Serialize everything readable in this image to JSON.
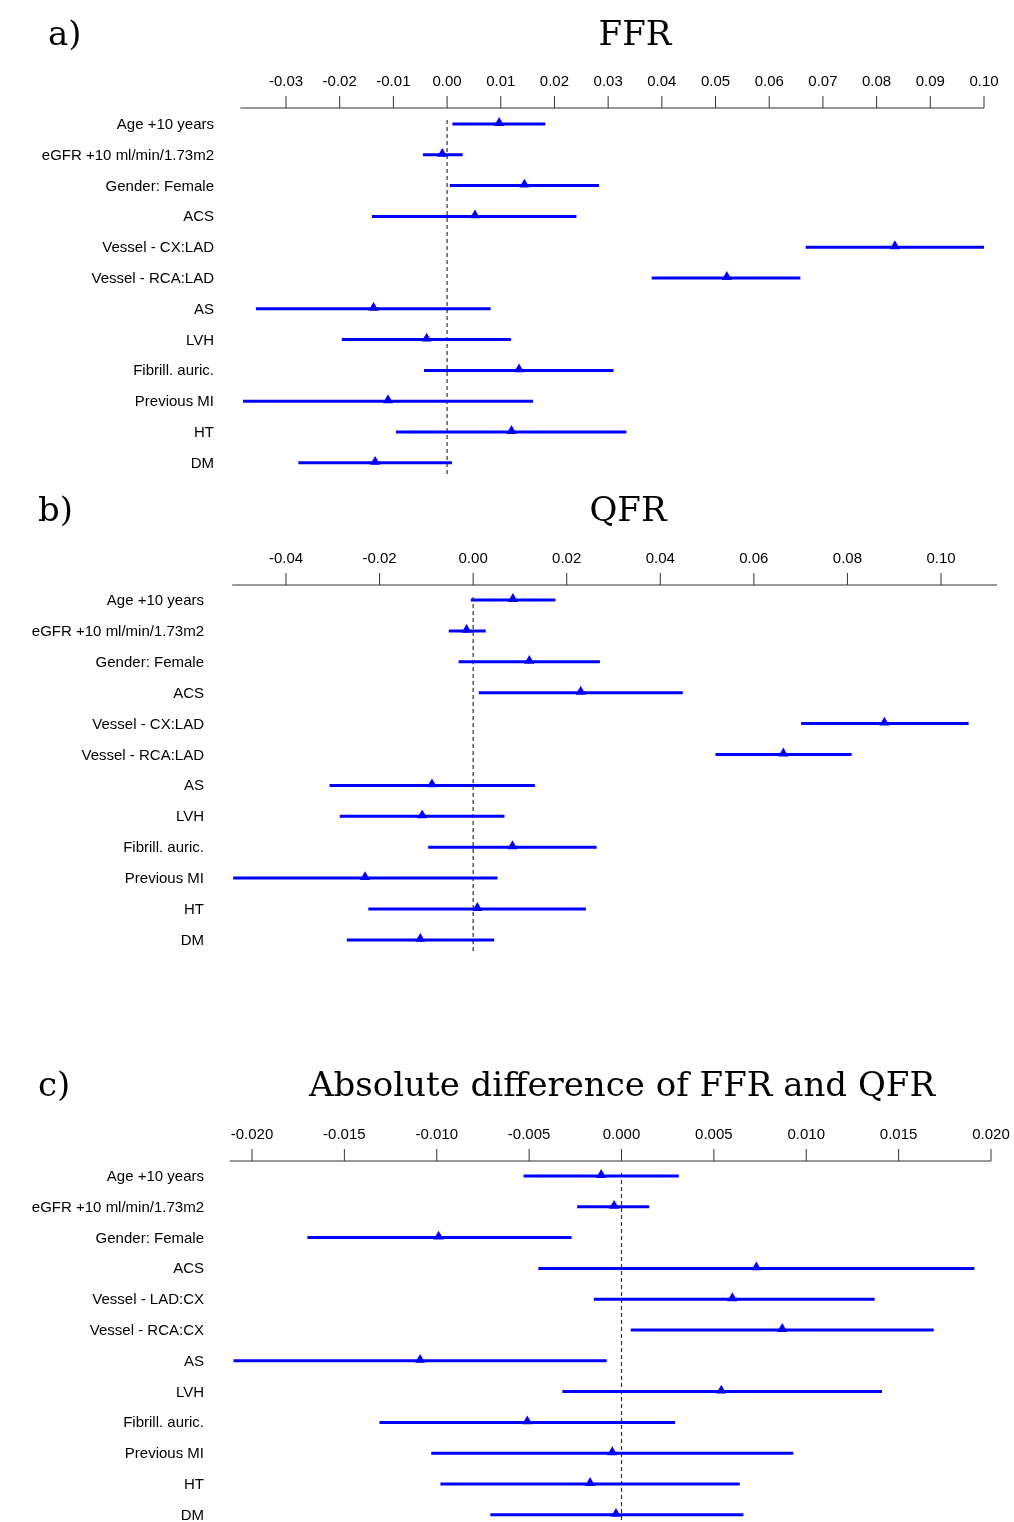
{
  "chart_data": [
    {
      "type": "scatter",
      "orientation": "horizontal",
      "title": "FFR",
      "annotations": [
        "a)"
      ],
      "categories": [
        "Age +10 years",
        "eGFR +10 ml/min/1.73m2",
        "Gender: Female",
        "ACS",
        "Vessel - CX:LAD",
        "Vessel - RCA:LAD",
        "AS",
        "LVH",
        "Fibrill. auric.",
        "Previous MI",
        "HT",
        "DM"
      ],
      "series": [
        {
          "color": "#0000ff",
          "values": [
            0.0097,
            -0.0009,
            0.0144,
            0.0052,
            0.0834,
            0.0521,
            -0.0137,
            -0.0038,
            0.0134,
            -0.011,
            0.012,
            -0.0134
          ],
          "errors": [
            [
              0.001,
              0.0183
            ],
            [
              -0.0045,
              0.0029
            ],
            [
              0.0005,
              0.0283
            ],
            [
              -0.014,
              0.0241
            ],
            [
              0.0668,
              0.1
            ],
            [
              0.0381,
              0.0658
            ],
            [
              -0.0356,
              0.0081
            ],
            [
              -0.0196,
              0.0119
            ],
            [
              -0.0043,
              0.031
            ],
            [
              -0.038,
              0.016
            ],
            [
              -0.0095,
              0.0334
            ],
            [
              -0.0277,
              0.0009
            ]
          ]
        }
      ],
      "xlim": [
        -0.0385,
        0.1
      ],
      "xticks": [
        {
          "value": -0.03,
          "label": "-0.03"
        },
        {
          "value": -0.02,
          "label": "-0.02"
        },
        {
          "value": -0.01,
          "label": "-0.01"
        },
        {
          "value": 0,
          "label": "0.00"
        },
        {
          "value": 0.01,
          "label": "0.01"
        },
        {
          "value": 0.02,
          "label": "0.02"
        },
        {
          "value": 0.03,
          "label": "0.03"
        },
        {
          "value": 0.04,
          "label": "0.04"
        },
        {
          "value": 0.05,
          "label": "0.05"
        },
        {
          "value": 0.06,
          "label": "0.06"
        },
        {
          "value": 0.07,
          "label": "0.07"
        },
        {
          "value": 0.08,
          "label": "0.08"
        },
        {
          "value": 0.09,
          "label": "0.09"
        },
        {
          "value": 0.1,
          "label": "0.10"
        }
      ],
      "ref_lines": [
        {
          "axis": "x",
          "value": 0,
          "line_style": "dashed",
          "color": "#333333"
        }
      ],
      "marker": "triangle",
      "grid": false
    },
    {
      "type": "scatter",
      "orientation": "horizontal",
      "title": "QFR",
      "annotations": [
        "b)"
      ],
      "categories": [
        "Age +10 years",
        "eGFR +10 ml/min/1.73m2",
        "Gender: Female",
        "ACS",
        "Vessel - CX:LAD",
        "Vessel - RCA:LAD",
        "AS",
        "LVH",
        "Fibrill. auric.",
        "Previous MI",
        "HT",
        "DM"
      ],
      "series": [
        {
          "color": "#0000ff",
          "values": [
            0.0085,
            -0.0014,
            0.012,
            0.023,
            0.0879,
            0.0663,
            -0.0088,
            -0.0109,
            0.0084,
            -0.0231,
            0.0009,
            -0.0113
          ],
          "errors": [
            [
              -0.0005,
              0.0176
            ],
            [
              -0.0052,
              0.0027
            ],
            [
              -0.0031,
              0.0271
            ],
            [
              0.0012,
              0.0448
            ],
            [
              0.0701,
              0.1059
            ],
            [
              0.0518,
              0.0809
            ],
            [
              -0.0307,
              0.0132
            ],
            [
              -0.0285,
              0.0067
            ],
            [
              -0.0096,
              0.0264
            ],
            [
              -0.0513,
              0.0052
            ],
            [
              -0.0224,
              0.0241
            ],
            [
              -0.027,
              0.0045
            ]
          ]
        }
      ],
      "xlim": [
        -0.0515,
        0.112
      ],
      "xticks": [
        {
          "value": -0.04,
          "label": "-0.04"
        },
        {
          "value": -0.02,
          "label": "-0.02"
        },
        {
          "value": 0,
          "label": "0.00"
        },
        {
          "value": 0.02,
          "label": "0.02"
        },
        {
          "value": 0.04,
          "label": "0.04"
        },
        {
          "value": 0.06,
          "label": "0.06"
        },
        {
          "value": 0.08,
          "label": "0.08"
        },
        {
          "value": 0.1,
          "label": "0.10"
        }
      ],
      "ref_lines": [
        {
          "axis": "x",
          "value": 0,
          "line_style": "dashed",
          "color": "#333333"
        }
      ],
      "marker": "triangle",
      "grid": false
    },
    {
      "type": "scatter",
      "orientation": "horizontal",
      "title": "Absolute difference of FFR and QFR",
      "annotations": [
        "c)"
      ],
      "categories": [
        "Age +10 years",
        "eGFR +10 ml/min/1.73m2",
        "Gender: Female",
        "ACS",
        "Vessel - LAD:CX",
        "Vessel - RCA:CX",
        "AS",
        "LVH",
        "Fibrill. auric.",
        "Previous MI",
        "HT",
        "DM"
      ],
      "series": [
        {
          "color": "#0000ff",
          "values": [
            -0.0011,
            -0.0004,
            -0.0099,
            0.0073,
            0.006,
            0.0087,
            -0.0109,
            0.0054,
            -0.0051,
            -0.0005,
            -0.0017,
            -0.0003
          ],
          "errors": [
            [
              -0.0053,
              0.0031
            ],
            [
              -0.0024,
              0.0015
            ],
            [
              -0.017,
              -0.0027
            ],
            [
              -0.0045,
              0.0191
            ],
            [
              -0.0015,
              0.0137
            ],
            [
              0.0005,
              0.0169
            ],
            [
              -0.021,
              -0.0008
            ],
            [
              -0.0032,
              0.0141
            ],
            [
              -0.0131,
              0.0029
            ],
            [
              -0.0103,
              0.0093
            ],
            [
              -0.0098,
              0.0064
            ],
            [
              -0.0071,
              0.0066
            ]
          ]
        }
      ],
      "xlim": [
        -0.0212,
        0.02
      ],
      "xticks": [
        {
          "value": -0.02,
          "label": "-0.020"
        },
        {
          "value": -0.015,
          "label": "-0.015"
        },
        {
          "value": -0.01,
          "label": "-0.010"
        },
        {
          "value": -0.005,
          "label": "-0.005"
        },
        {
          "value": 0,
          "label": "0.000"
        },
        {
          "value": 0.005,
          "label": "0.005"
        },
        {
          "value": 0.01,
          "label": "0.010"
        },
        {
          "value": 0.015,
          "label": "0.015"
        },
        {
          "value": 0.02,
          "label": "0.020"
        }
      ],
      "ref_lines": [
        {
          "axis": "x",
          "value": 0,
          "line_style": "dashed",
          "color": "#333333"
        }
      ],
      "marker": "triangle",
      "grid": false
    }
  ]
}
